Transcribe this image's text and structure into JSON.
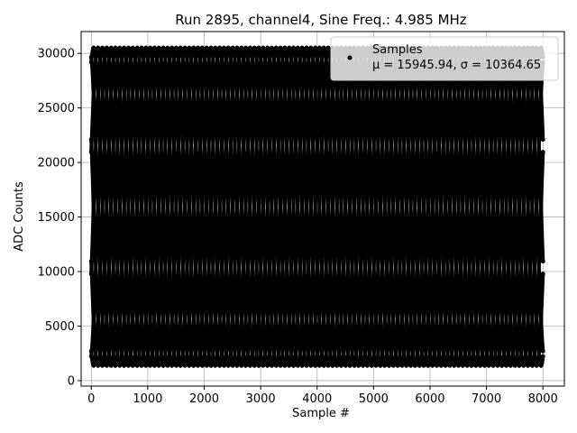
{
  "chart_data": {
    "type": "scatter",
    "title": "Run 2895, channel4, Sine Freq.: 4.985 MHz",
    "xlabel": "Sample #",
    "ylabel": "ADC Counts",
    "xlim": [
      -180,
      8380
    ],
    "ylim": [
      -500,
      32000
    ],
    "xticks": [
      0,
      1000,
      2000,
      3000,
      4000,
      5000,
      6000,
      7000,
      8000
    ],
    "yticks": [
      0,
      5000,
      10000,
      15000,
      20000,
      25000,
      30000
    ],
    "grid": true,
    "legend_placement": "upper right",
    "series": [
      {
        "name": "Samples",
        "color": "#000000",
        "marker": "dot",
        "x_range": [
          0,
          8000
        ],
        "baseline": 15945.94,
        "amplitude": 14600,
        "interleave_phases": 8,
        "envelope_cycles": 13
      }
    ],
    "legend": {
      "label": "Samples",
      "stats": "μ = 15945.94, σ = 10364.65"
    }
  }
}
